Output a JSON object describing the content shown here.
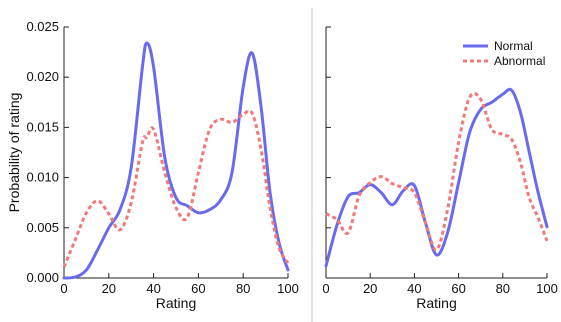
{
  "chart_data": [
    {
      "type": "line",
      "xlabel": "Rating",
      "ylabel": "Probability of rating",
      "xlim": [
        0,
        100
      ],
      "ylim": [
        0,
        0.025
      ],
      "xticks": [
        0,
        20,
        40,
        60,
        80,
        100
      ],
      "yticks": [
        0.0,
        0.005,
        0.01,
        0.015,
        0.02,
        0.025
      ],
      "ytick_labels": [
        "0.000",
        "0.005",
        "0.010",
        "0.015",
        "0.020",
        "0.025"
      ],
      "x": [
        0,
        5,
        10,
        15,
        20,
        25,
        30,
        35,
        37,
        40,
        45,
        50,
        55,
        60,
        65,
        70,
        75,
        80,
        84,
        88,
        92,
        96,
        100
      ],
      "series": [
        {
          "name": "Normal",
          "color": "#6a6aee",
          "style": "solid",
          "values": [
            0.0,
            0.0001,
            0.0008,
            0.0028,
            0.005,
            0.0068,
            0.011,
            0.021,
            0.0234,
            0.021,
            0.012,
            0.008,
            0.0072,
            0.0065,
            0.0068,
            0.0078,
            0.0105,
            0.019,
            0.0224,
            0.017,
            0.0085,
            0.0035,
            0.0008
          ]
        },
        {
          "name": "Abnormal",
          "color": "#f07a7a",
          "style": "dotted",
          "values": [
            0.0011,
            0.0038,
            0.0065,
            0.0077,
            0.0064,
            0.0048,
            0.0075,
            0.0135,
            0.014,
            0.0148,
            0.0105,
            0.007,
            0.006,
            0.0105,
            0.0148,
            0.0158,
            0.0155,
            0.0163,
            0.0164,
            0.0128,
            0.007,
            0.003,
            0.0015
          ]
        }
      ]
    },
    {
      "type": "line",
      "xlabel": "Rating",
      "ylabel": "",
      "xlim": [
        0,
        100
      ],
      "ylim": [
        0,
        0.025
      ],
      "xticks": [
        0,
        20,
        40,
        60,
        80,
        100
      ],
      "legend": {
        "position": "top-right",
        "entries": [
          "Normal",
          "Abnormal"
        ]
      },
      "x": [
        0,
        5,
        10,
        15,
        20,
        25,
        30,
        35,
        40,
        45,
        50,
        55,
        60,
        65,
        70,
        75,
        80,
        84,
        88,
        92,
        96,
        100
      ],
      "series": [
        {
          "name": "Normal",
          "color": "#6a6aee",
          "style": "solid",
          "values": [
            0.0012,
            0.0053,
            0.0081,
            0.0085,
            0.0093,
            0.0085,
            0.0073,
            0.0087,
            0.0092,
            0.0055,
            0.0023,
            0.0045,
            0.0095,
            0.0145,
            0.0168,
            0.0175,
            0.0183,
            0.0187,
            0.0165,
            0.0125,
            0.0085,
            0.0051
          ]
        },
        {
          "name": "Abnormal",
          "color": "#f07a7a",
          "style": "dotted",
          "values": [
            0.0064,
            0.0058,
            0.0045,
            0.0082,
            0.0095,
            0.0101,
            0.0094,
            0.009,
            0.0085,
            0.0055,
            0.0028,
            0.0068,
            0.0135,
            0.018,
            0.0178,
            0.0148,
            0.0143,
            0.0138,
            0.0115,
            0.008,
            0.006,
            0.0037
          ]
        }
      ]
    }
  ]
}
